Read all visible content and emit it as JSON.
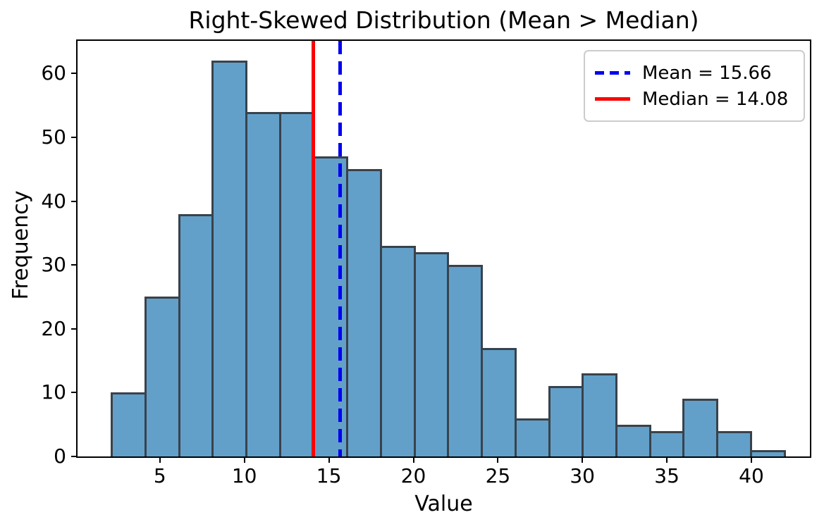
{
  "chart_data": {
    "type": "bar",
    "subtype": "histogram",
    "title": "Right-Skewed Distribution (Mean > Median)",
    "xlabel": "Value",
    "ylabel": "Frequency",
    "bins": {
      "start": 2.1,
      "width": 1.99,
      "count": 20
    },
    "frequencies": [
      10,
      25,
      38,
      62,
      54,
      54,
      47,
      45,
      33,
      32,
      30,
      17,
      6,
      11,
      13,
      5,
      4,
      9,
      4,
      1
    ],
    "xlim": [
      0.13,
      43.46
    ],
    "ylim": [
      0,
      65.1
    ],
    "xticks": [
      5,
      10,
      15,
      20,
      25,
      30,
      35,
      40
    ],
    "yticks": [
      0,
      10,
      20,
      30,
      40,
      50,
      60
    ],
    "grid": false,
    "legend_position": "upper-right",
    "bar_fill_color": "#62A0CA",
    "bar_edge_color": "#39424B",
    "reference_lines": [
      {
        "id": "mean",
        "value": 15.66,
        "label": "Mean = 15.66",
        "color": "#0000F0",
        "style": "dashed"
      },
      {
        "id": "median",
        "value": 14.08,
        "label": "Median = 14.08",
        "color": "#FB0000",
        "style": "solid"
      }
    ]
  }
}
